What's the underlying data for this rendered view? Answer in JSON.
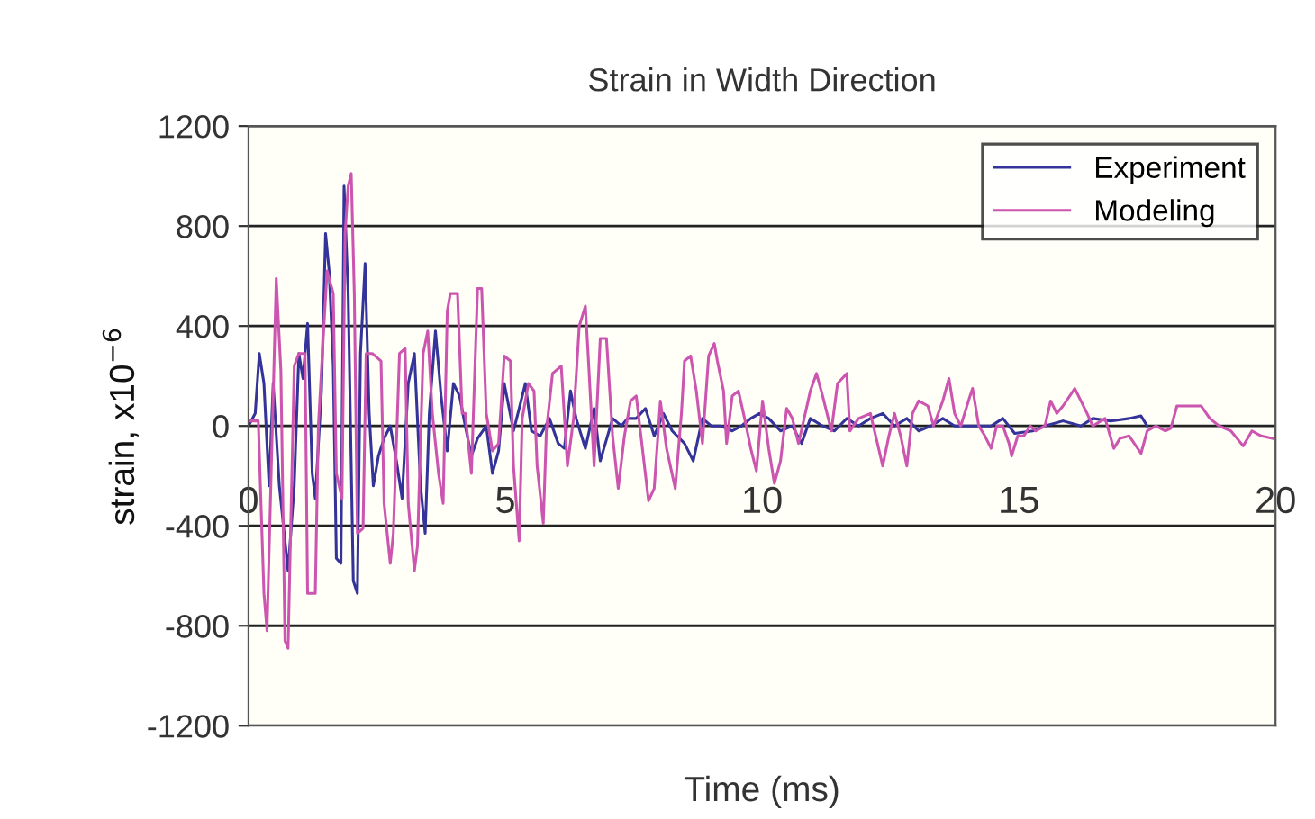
{
  "chart_data": {
    "type": "line",
    "title": "Strain in Width Direction",
    "xlabel": "Time (ms)",
    "ylabel": "strain, x10$^{−6}$",
    "xlim": [
      0,
      20
    ],
    "xticks": [
      0,
      5,
      10,
      15,
      20
    ],
    "ylim": [
      -1200,
      1200
    ],
    "yticks": [
      -1200,
      -800,
      -400,
      0,
      400,
      800,
      1200
    ],
    "grid": "y",
    "legend": "top right",
    "marker": "none",
    "line_style": "solid",
    "series": [
      {
        "name": "Experiment",
        "color": "#333399",
        "x": [
          0,
          0.13,
          0.21,
          0.3,
          0.4,
          0.48,
          0.6,
          0.77,
          0.89,
          0.98,
          1.06,
          1.15,
          1.24,
          1.3,
          1.42,
          1.5,
          1.57,
          1.65,
          1.71,
          1.8,
          1.86,
          1.94,
          2.04,
          2.12,
          2.18,
          2.27,
          2.35,
          2.43,
          2.53,
          2.64,
          2.76,
          2.88,
          2.99,
          3.11,
          3.23,
          3.35,
          3.44,
          3.52,
          3.64,
          3.75,
          3.87,
          3.99,
          4.11,
          4.22,
          4.34,
          4.46,
          4.63,
          4.75,
          4.87,
          4.98,
          5.16,
          5.27,
          5.39,
          5.51,
          5.68,
          5.86,
          6.03,
          6.15,
          6.27,
          6.38,
          6.56,
          6.73,
          6.85,
          7.09,
          7.26,
          7.38,
          7.55,
          7.73,
          7.9,
          8.08,
          8.25,
          8.49,
          8.66,
          8.84,
          9.01,
          9.19,
          9.42,
          9.6,
          9.78,
          9.95,
          10.13,
          10.36,
          10.59,
          10.77,
          10.94,
          11.18,
          11.41,
          11.65,
          11.88,
          12.11,
          12.35,
          12.58,
          12.82,
          13.05,
          13.29,
          13.52,
          13.75,
          14.1,
          14.46,
          14.69,
          14.92,
          15.27,
          15.51,
          15.86,
          16.21,
          16.44,
          16.79,
          17.15,
          17.38,
          17.5
        ],
        "values": [
          0,
          50,
          290,
          170,
          -240,
          170,
          -240,
          -580,
          -240,
          290,
          190,
          410,
          -190,
          -290,
          140,
          770,
          620,
          240,
          -530,
          -550,
          960,
          530,
          -620,
          -670,
          290,
          650,
          50,
          -240,
          -120,
          -50,
          0,
          -140,
          -290,
          170,
          290,
          -240,
          -430,
          50,
          380,
          120,
          -100,
          170,
          120,
          0,
          -120,
          -50,
          0,
          -190,
          -100,
          170,
          -20,
          70,
          170,
          -20,
          -40,
          30,
          -70,
          -90,
          140,
          30,
          -90,
          70,
          -140,
          30,
          0,
          30,
          30,
          70,
          -40,
          50,
          -20,
          -70,
          -140,
          30,
          0,
          0,
          -20,
          0,
          30,
          50,
          30,
          -20,
          0,
          -70,
          30,
          0,
          -20,
          30,
          0,
          30,
          50,
          0,
          30,
          -20,
          0,
          30,
          0,
          0,
          0,
          30,
          -30,
          -20,
          0,
          20,
          0,
          30,
          20,
          30,
          40,
          0
        ]
      },
      {
        "name": "Modeling",
        "color": "#cc55b0",
        "x": [
          0,
          0.19,
          0.3,
          0.36,
          0.54,
          0.63,
          0.71,
          0.77,
          0.89,
          0.98,
          1.1,
          1.15,
          1.3,
          1.36,
          1.47,
          1.53,
          1.65,
          1.71,
          1.82,
          1.88,
          1.94,
          2.0,
          2.06,
          2.12,
          2.23,
          2.29,
          2.41,
          2.58,
          2.64,
          2.76,
          2.82,
          2.94,
          3.05,
          3.11,
          3.23,
          3.29,
          3.4,
          3.49,
          3.58,
          3.7,
          3.79,
          3.87,
          3.93,
          4.07,
          4.16,
          4.22,
          4.34,
          4.46,
          4.54,
          4.63,
          4.75,
          4.87,
          4.98,
          5.1,
          5.16,
          5.27,
          5.33,
          5.45,
          5.56,
          5.62,
          5.74,
          5.8,
          5.92,
          6.09,
          6.21,
          6.33,
          6.44,
          6.56,
          6.62,
          6.73,
          6.85,
          6.97,
          7.09,
          7.2,
          7.32,
          7.44,
          7.55,
          7.67,
          7.79,
          7.9,
          8.02,
          8.14,
          8.31,
          8.43,
          8.49,
          8.61,
          8.72,
          8.84,
          8.96,
          9.07,
          9.13,
          9.25,
          9.31,
          9.42,
          9.54,
          9.66,
          9.78,
          9.89,
          10.01,
          10.13,
          10.24,
          10.36,
          10.48,
          10.59,
          10.71,
          10.94,
          11.06,
          11.18,
          11.35,
          11.47,
          11.65,
          11.71,
          11.88,
          12.11,
          12.35,
          12.47,
          12.58,
          12.7,
          12.82,
          12.93,
          13.05,
          13.23,
          13.34,
          13.52,
          13.64,
          13.75,
          13.87,
          14.05,
          14.1,
          14.22,
          14.34,
          14.46,
          14.57,
          14.69,
          14.81,
          14.86,
          14.98,
          15.1,
          15.22,
          15.33,
          15.51,
          15.62,
          15.74,
          15.86,
          16.09,
          16.21,
          16.33,
          16.44,
          16.68,
          16.85,
          16.97,
          17.15,
          17.38,
          17.5,
          17.67,
          17.85,
          17.96,
          18.08,
          18.31,
          18.55,
          18.72,
          18.9,
          19.13,
          19.37,
          19.54,
          19.72,
          19.95
        ],
        "values": [
          20,
          20,
          -670,
          -820,
          590,
          220,
          -860,
          -890,
          240,
          290,
          290,
          -670,
          -670,
          0,
          410,
          620,
          530,
          -190,
          -290,
          770,
          960,
          1010,
          530,
          -430,
          -410,
          290,
          290,
          260,
          -310,
          -550,
          -430,
          290,
          310,
          -310,
          -580,
          -480,
          290,
          380,
          50,
          -190,
          -310,
          460,
          530,
          530,
          50,
          50,
          -190,
          550,
          550,
          50,
          -100,
          -70,
          280,
          260,
          -160,
          -460,
          30,
          170,
          140,
          -160,
          -390,
          -20,
          210,
          240,
          -160,
          30,
          400,
          480,
          260,
          -160,
          350,
          350,
          -40,
          -250,
          -40,
          100,
          120,
          -90,
          -300,
          -250,
          100,
          -90,
          -250,
          50,
          260,
          280,
          140,
          -70,
          280,
          330,
          260,
          140,
          -70,
          120,
          140,
          30,
          -90,
          -180,
          100,
          -90,
          -230,
          -140,
          70,
          30,
          -70,
          140,
          210,
          120,
          -20,
          170,
          210,
          -20,
          30,
          50,
          -160,
          -40,
          50,
          -40,
          -160,
          50,
          100,
          80,
          0,
          100,
          190,
          50,
          0,
          120,
          150,
          0,
          -40,
          -90,
          0,
          0,
          -70,
          -120,
          -40,
          -40,
          0,
          -20,
          0,
          100,
          50,
          80,
          150,
          100,
          50,
          0,
          30,
          -90,
          -50,
          -40,
          -110,
          -20,
          0,
          -20,
          -10,
          80,
          80,
          80,
          30,
          0,
          -20,
          -80,
          -20,
          -40,
          -50
        ]
      }
    ]
  }
}
